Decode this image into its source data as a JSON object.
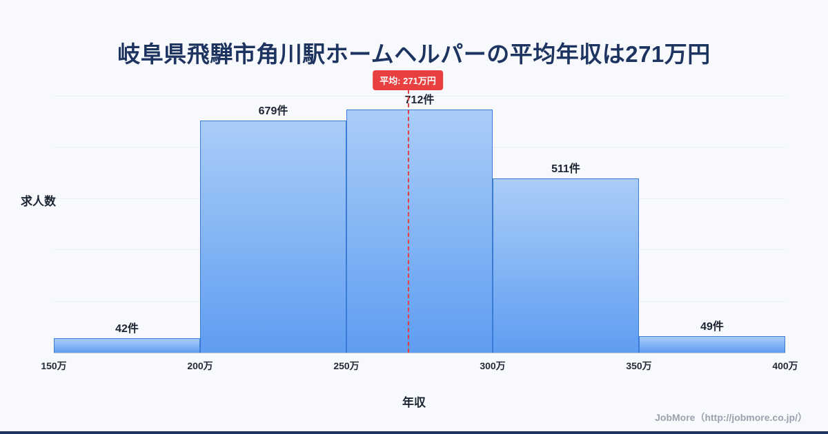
{
  "title": "岐阜県飛騨市角川駅ホームヘルパーの平均年収は271万円",
  "footer": {
    "credit": "JobMore（http://jobmore.co.jp/）"
  },
  "chart_data": {
    "type": "bar",
    "title": "岐阜県飛騨市角川駅ホームヘルパーの平均年収は271万円",
    "xlabel": "年収",
    "ylabel": "求人数",
    "x_tick_labels": [
      "150万",
      "200万",
      "250万",
      "300万",
      "350万",
      "400万"
    ],
    "x_range_man_yen": [
      150,
      400
    ],
    "ylim": [
      0,
      750
    ],
    "grid": true,
    "bins": [
      {
        "x0": 150,
        "x1": 200,
        "count": 42,
        "label": "42件"
      },
      {
        "x0": 200,
        "x1": 250,
        "count": 679,
        "label": "679件"
      },
      {
        "x0": 250,
        "x1": 300,
        "count": 712,
        "label": "712件"
      },
      {
        "x0": 300,
        "x1": 350,
        "count": 511,
        "label": "511件"
      },
      {
        "x0": 350,
        "x1": 400,
        "count": 49,
        "label": "49件"
      }
    ],
    "average": 271,
    "average_label": "平均: 271万円",
    "colors": {
      "bar_fill_top": "#aacdf8",
      "bar_fill_bottom": "#5f9df1",
      "bar_border": "#3a7bd5",
      "average_line": "#e53e3e",
      "average_badge_bg": "#e84040",
      "title_color": "#1d3461",
      "accent_bar": "#1e3560"
    }
  }
}
